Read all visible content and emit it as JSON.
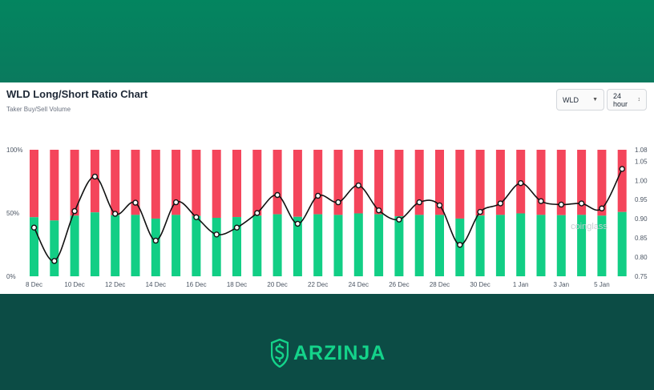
{
  "header": {
    "title": "WLD Long/Short Ratio Chart",
    "subtitle": "Taker Buy/Sell Volume"
  },
  "controls": {
    "coin": "WLD",
    "interval": "24 hour"
  },
  "watermark": "coinglass",
  "brand": {
    "name": "ARZINJA",
    "color": "#14d38a"
  },
  "colors": {
    "long": "#12ce85",
    "short": "#f4455b",
    "line": "#111111"
  },
  "chart_data": {
    "type": "bar",
    "combo": "stacked bar (left axis, %) + line (right axis, ratio)",
    "left_axis": {
      "ticks": [
        "0%",
        "50%",
        "100%"
      ],
      "ylim": [
        0,
        100
      ]
    },
    "right_axis": {
      "ticks": [
        "0.75",
        "0.80",
        "0.85",
        "0.90",
        "0.95",
        "1.00",
        "1.05",
        "1.08"
      ],
      "ylim": [
        0.75,
        1.08
      ]
    },
    "x_tick_labels": [
      "8 Dec",
      "10 Dec",
      "12 Dec",
      "14 Dec",
      "16 Dec",
      "18 Dec",
      "20 Dec",
      "22 Dec",
      "24 Dec",
      "26 Dec",
      "28 Dec",
      "30 Dec",
      "1 Jan",
      "3 Jan",
      "5 Jan"
    ],
    "categories": [
      "8 Dec",
      "9 Dec",
      "10 Dec",
      "11 Dec",
      "12 Dec",
      "13 Dec",
      "14 Dec",
      "15 Dec",
      "16 Dec",
      "17 Dec",
      "18 Dec",
      "19 Dec",
      "20 Dec",
      "21 Dec",
      "22 Dec",
      "23 Dec",
      "24 Dec",
      "25 Dec",
      "26 Dec",
      "27 Dec",
      "28 Dec",
      "29 Dec",
      "30 Dec",
      "31 Dec",
      "1 Jan",
      "2 Jan",
      "3 Jan",
      "4 Jan",
      "5 Jan",
      "6 Jan"
    ],
    "long_pct": [
      46.7,
      44.1,
      47.9,
      50.5,
      48.3,
      48.5,
      45.6,
      48.5,
      47.7,
      46.2,
      46.8,
      47.9,
      49.0,
      47.0,
      49.0,
      48.5,
      49.7,
      49.0,
      47.4,
      48.5,
      48.5,
      45.6,
      48.0,
      48.5,
      49.7,
      48.5,
      48.3,
      48.5,
      47.9,
      50.8
    ],
    "ratio": [
      0.877,
      0.79,
      0.92,
      1.01,
      0.913,
      0.942,
      0.843,
      0.943,
      0.904,
      0.859,
      0.877,
      0.915,
      0.962,
      0.887,
      0.96,
      0.943,
      0.987,
      0.922,
      0.898,
      0.943,
      0.935,
      0.832,
      0.918,
      0.94,
      0.993,
      0.946,
      0.937,
      0.94,
      0.927,
      1.03
    ],
    "legend": "none",
    "grid": false
  }
}
